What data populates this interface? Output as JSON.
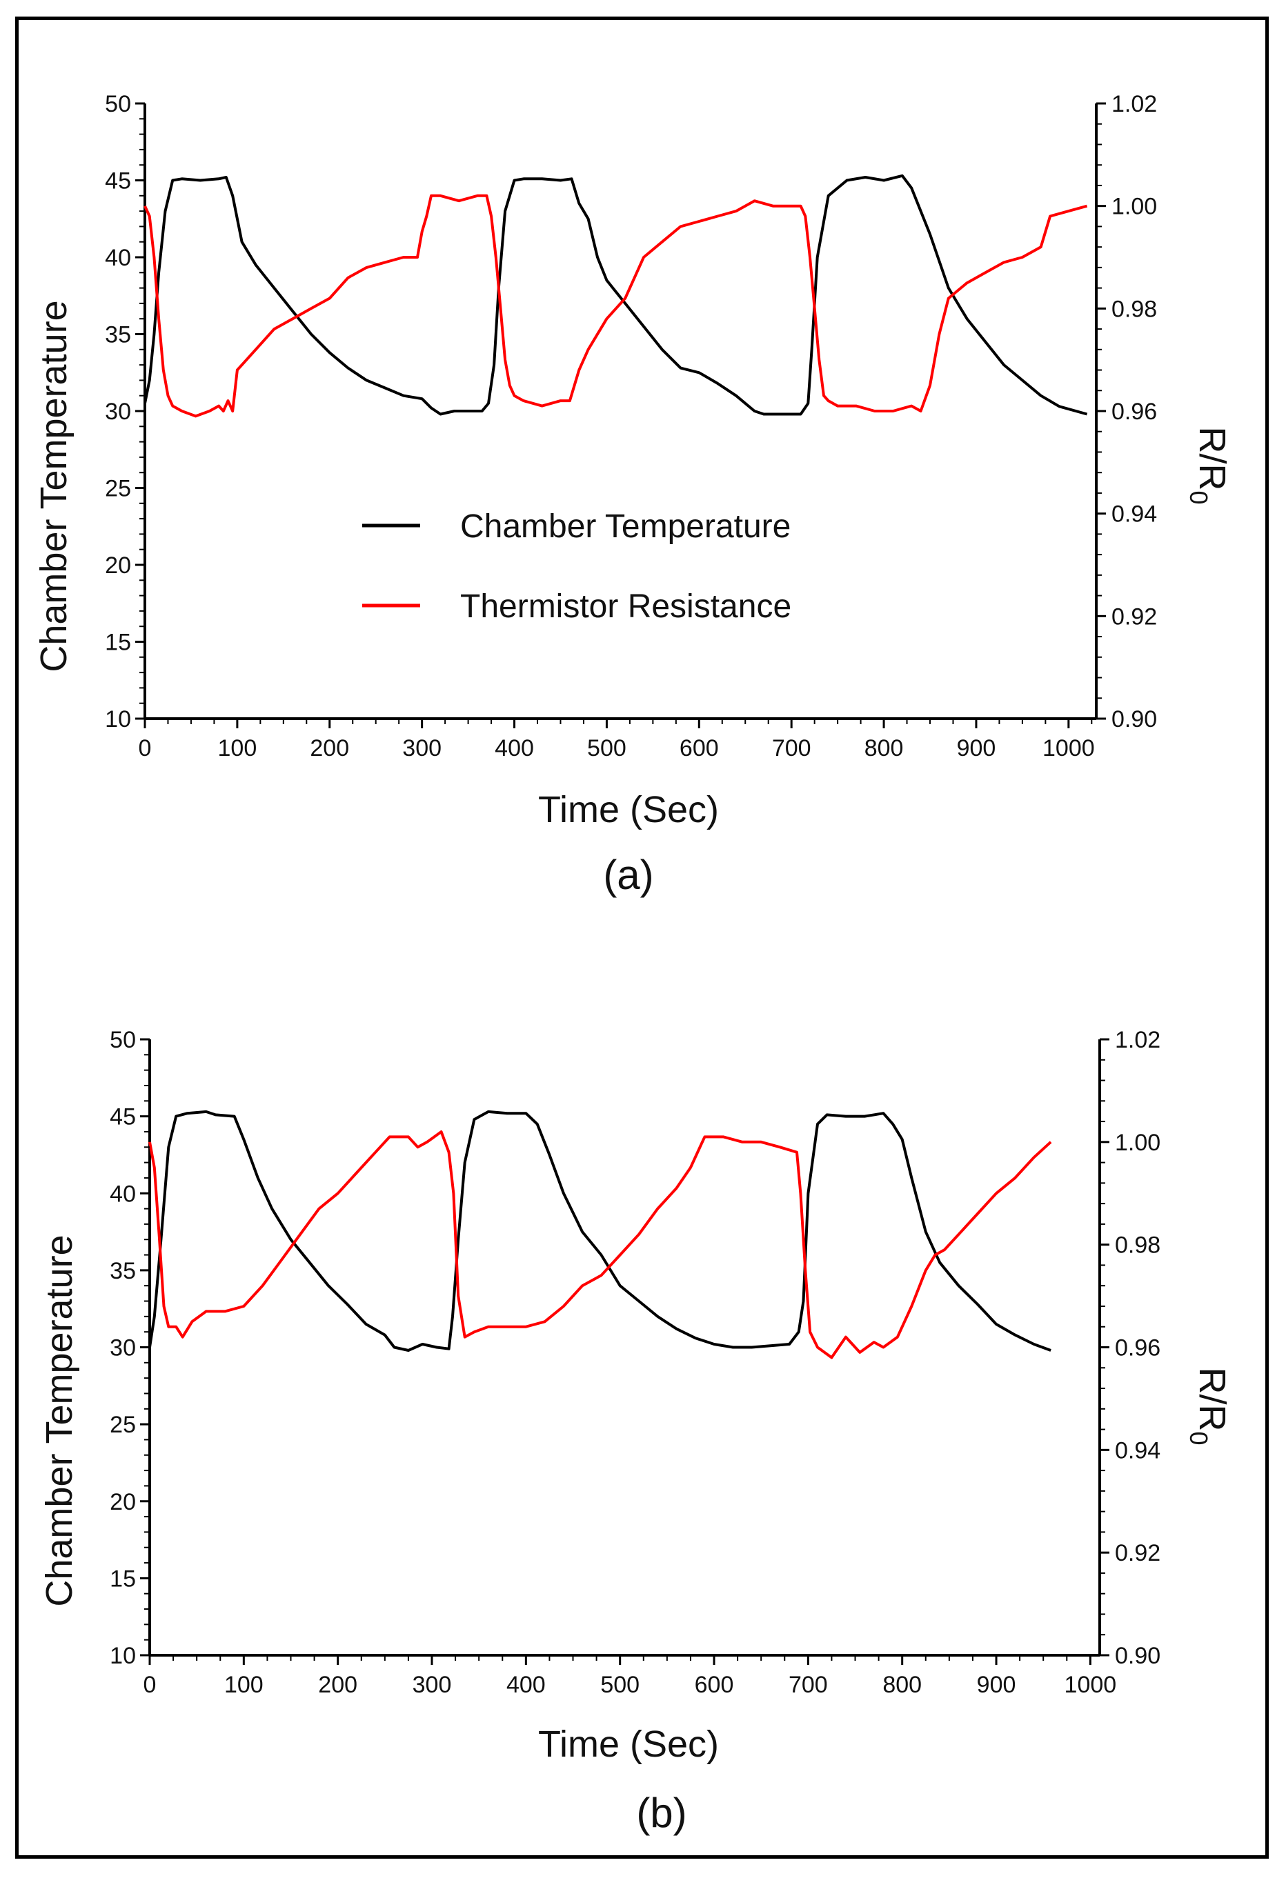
{
  "chart_data": [
    {
      "type": "line",
      "panel_label": "(a)",
      "xlabel": "Time (Sec)",
      "ylabel": "Chamber Temperature",
      "y2label_main": "R/R",
      "y2label_sub": "0",
      "xlim": [
        0,
        1030
      ],
      "ylim": [
        10,
        50
      ],
      "y2lim": [
        0.9,
        1.02
      ],
      "xticks": [
        0,
        100,
        200,
        300,
        400,
        500,
        600,
        700,
        800,
        900,
        1000
      ],
      "yticks": [
        10,
        15,
        20,
        25,
        30,
        35,
        40,
        45,
        50
      ],
      "y2ticks": [
        0.9,
        0.92,
        0.94,
        0.96,
        0.98,
        1.0,
        1.02
      ],
      "legend": {
        "position": "center",
        "entries": [
          "Chamber Temperature",
          "Thermistor Resistance"
        ]
      },
      "series": [
        {
          "name": "Chamber Temperature",
          "axis": "left",
          "color": "#000000",
          "x": [
            0,
            5,
            10,
            15,
            22,
            30,
            40,
            60,
            80,
            88,
            95,
            105,
            120,
            140,
            160,
            180,
            200,
            220,
            240,
            260,
            280,
            300,
            310,
            320,
            335,
            350,
            365,
            372,
            378,
            383,
            390,
            400,
            410,
            430,
            450,
            462,
            470,
            480,
            490,
            500,
            520,
            540,
            560,
            580,
            600,
            620,
            640,
            660,
            670,
            690,
            710,
            718,
            722,
            728,
            740,
            760,
            780,
            800,
            820,
            830,
            850,
            870,
            890,
            910,
            930,
            950,
            970,
            990,
            1020
          ],
          "y": [
            30.5,
            32,
            35,
            39,
            43,
            45,
            45.1,
            45,
            45.1,
            45.2,
            44,
            41,
            39.5,
            38,
            36.5,
            35,
            33.8,
            32.8,
            32,
            31.5,
            31,
            30.8,
            30.2,
            29.8,
            30,
            30,
            30,
            30.5,
            33,
            38,
            43,
            45,
            45.1,
            45.1,
            45,
            45.1,
            43.5,
            42.5,
            40,
            38.5,
            37,
            35.5,
            34,
            32.8,
            32.5,
            31.8,
            31,
            30,
            29.8,
            29.8,
            29.8,
            30.5,
            34,
            40,
            44,
            45,
            45.2,
            45,
            45.3,
            44.5,
            41.5,
            38,
            36,
            34.5,
            33,
            32,
            31,
            30.3,
            29.8
          ]
        },
        {
          "name": "Thermistor Resistance",
          "axis": "right",
          "color": "#ff0000",
          "x": [
            0,
            5,
            10,
            15,
            20,
            25,
            30,
            40,
            55,
            70,
            80,
            85,
            90,
            95,
            100,
            110,
            120,
            140,
            160,
            180,
            200,
            220,
            240,
            260,
            280,
            295,
            300,
            305,
            310,
            320,
            340,
            360,
            370,
            375,
            380,
            385,
            390,
            395,
            400,
            410,
            430,
            450,
            460,
            470,
            480,
            500,
            520,
            540,
            560,
            580,
            600,
            620,
            640,
            660,
            680,
            700,
            710,
            715,
            720,
            725,
            730,
            735,
            740,
            750,
            770,
            790,
            810,
            830,
            840,
            850,
            860,
            870,
            890,
            910,
            930,
            950,
            970,
            980,
            1000,
            1020
          ],
          "y": [
            1.0,
            0.998,
            0.99,
            0.978,
            0.968,
            0.963,
            0.961,
            0.96,
            0.959,
            0.96,
            0.961,
            0.96,
            0.962,
            0.96,
            0.968,
            0.97,
            0.972,
            0.976,
            0.978,
            0.98,
            0.982,
            0.986,
            0.988,
            0.989,
            0.99,
            0.99,
            0.995,
            0.998,
            1.002,
            1.002,
            1.001,
            1.002,
            1.002,
            0.998,
            0.99,
            0.98,
            0.97,
            0.965,
            0.963,
            0.962,
            0.961,
            0.962,
            0.962,
            0.968,
            0.972,
            0.978,
            0.982,
            0.99,
            0.993,
            0.996,
            0.997,
            0.998,
            0.999,
            1.001,
            1.0,
            1.0,
            1.0,
            0.998,
            0.99,
            0.98,
            0.97,
            0.963,
            0.962,
            0.961,
            0.961,
            0.96,
            0.96,
            0.961,
            0.96,
            0.965,
            0.975,
            0.982,
            0.985,
            0.987,
            0.989,
            0.99,
            0.992,
            0.998,
            0.999,
            1.0
          ]
        }
      ]
    },
    {
      "type": "line",
      "panel_label": "(b)",
      "xlabel": "Time (Sec)",
      "ylabel": "Chamber Temperature",
      "y2label_main": "R/R",
      "y2label_sub": "0",
      "xlim": [
        0,
        1010
      ],
      "ylim": [
        10,
        50
      ],
      "y2lim": [
        0.9,
        1.02
      ],
      "xticks": [
        0,
        100,
        200,
        300,
        400,
        500,
        600,
        700,
        800,
        900,
        1000
      ],
      "yticks": [
        10,
        15,
        20,
        25,
        30,
        35,
        40,
        45,
        50
      ],
      "y2ticks": [
        0.9,
        0.92,
        0.94,
        0.96,
        0.98,
        1.0,
        1.02
      ],
      "series": [
        {
          "name": "Chamber Temperature",
          "axis": "left",
          "color": "#000000",
          "x": [
            0,
            5,
            12,
            20,
            28,
            40,
            60,
            70,
            90,
            100,
            115,
            130,
            150,
            170,
            190,
            210,
            230,
            250,
            260,
            275,
            290,
            305,
            318,
            322,
            328,
            335,
            345,
            360,
            380,
            400,
            412,
            425,
            440,
            460,
            480,
            500,
            520,
            540,
            560,
            580,
            600,
            620,
            640,
            660,
            680,
            690,
            695,
            700,
            710,
            720,
            740,
            760,
            780,
            790,
            800,
            810,
            825,
            840,
            860,
            880,
            900,
            920,
            940,
            958
          ],
          "y": [
            30,
            32,
            37,
            43,
            45,
            45.2,
            45.3,
            45.1,
            45,
            43.5,
            41,
            39,
            37,
            35.5,
            34,
            32.8,
            31.5,
            30.8,
            30,
            29.8,
            30.2,
            30,
            29.9,
            32,
            37,
            42,
            44.8,
            45.3,
            45.2,
            45.2,
            44.5,
            42.5,
            40,
            37.5,
            36,
            34,
            33,
            32,
            31.2,
            30.6,
            30.2,
            30,
            30,
            30.1,
            30.2,
            31,
            33,
            40,
            44.5,
            45.1,
            45,
            45,
            45.2,
            44.5,
            43.5,
            41,
            37.5,
            35.5,
            34,
            32.8,
            31.5,
            30.8,
            30.2,
            29.8
          ]
        },
        {
          "name": "Thermistor Resistance",
          "axis": "right",
          "color": "#ff0000",
          "x": [
            0,
            5,
            10,
            15,
            20,
            28,
            35,
            45,
            60,
            80,
            100,
            120,
            140,
            160,
            180,
            200,
            220,
            240,
            255,
            265,
            275,
            285,
            295,
            310,
            318,
            323,
            328,
            335,
            345,
            360,
            380,
            400,
            420,
            440,
            460,
            480,
            500,
            520,
            540,
            560,
            575,
            590,
            610,
            630,
            650,
            670,
            688,
            692,
            697,
            702,
            710,
            725,
            740,
            755,
            770,
            780,
            795,
            810,
            825,
            835,
            845,
            860,
            880,
            900,
            920,
            940,
            958
          ],
          "y": [
            1.0,
            0.995,
            0.982,
            0.968,
            0.964,
            0.964,
            0.962,
            0.965,
            0.967,
            0.967,
            0.968,
            0.972,
            0.977,
            0.982,
            0.987,
            0.99,
            0.994,
            0.998,
            1.001,
            1.001,
            1.001,
            0.999,
            1.0,
            1.002,
            0.998,
            0.99,
            0.97,
            0.962,
            0.963,
            0.964,
            0.964,
            0.964,
            0.965,
            0.968,
            0.972,
            0.974,
            0.978,
            0.982,
            0.987,
            0.991,
            0.995,
            1.001,
            1.001,
            1.0,
            1.0,
            0.999,
            0.998,
            0.99,
            0.975,
            0.963,
            0.96,
            0.958,
            0.962,
            0.959,
            0.961,
            0.96,
            0.962,
            0.968,
            0.975,
            0.978,
            0.979,
            0.982,
            0.986,
            0.99,
            0.993,
            0.997,
            1.0
          ]
        }
      ]
    }
  ]
}
